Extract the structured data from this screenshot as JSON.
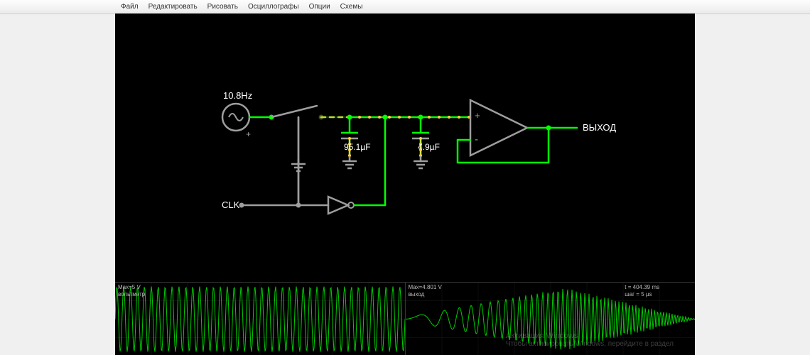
{
  "menu": {
    "items": [
      "Файл",
      "Редактировать",
      "Рисовать",
      "Осциллографы",
      "Опции",
      "Схемы"
    ]
  },
  "circuit": {
    "background": "#000000",
    "wire_on_color": "#00ff00",
    "wire_off_color": "#9e9e9e",
    "wire_mid_color": "#c0ff40",
    "dot_color": "#ffd040",
    "text_color": "#ffffff",
    "stroke_width": 2.5,
    "source": {
      "freq_label": "10.8Hz",
      "polarity_plus": "+"
    },
    "cap1_label": "95.1µF",
    "cap2_label": "4.9µF",
    "clk_label": "CLK",
    "output_label": "ВЫХОД",
    "opamp_plus": "+",
    "opamp_minus": "-"
  },
  "scope_left": {
    "label": "Max=5 V\nвольтметр",
    "color": "#00cc00",
    "grid_color": "#1a1a1a",
    "freq": 42,
    "amp": 46
  },
  "scope_right": {
    "label": "Max=4.801 V\nвыход",
    "color": "#00cc00",
    "grid_color": "#1a1a1a",
    "time_label": "t = 404.39 ms\nшаг = 5 µs"
  },
  "watermark": {
    "line1": "Активация Windows",
    "line2": "Чтобы активировать Windows, перейдите в раздел"
  }
}
